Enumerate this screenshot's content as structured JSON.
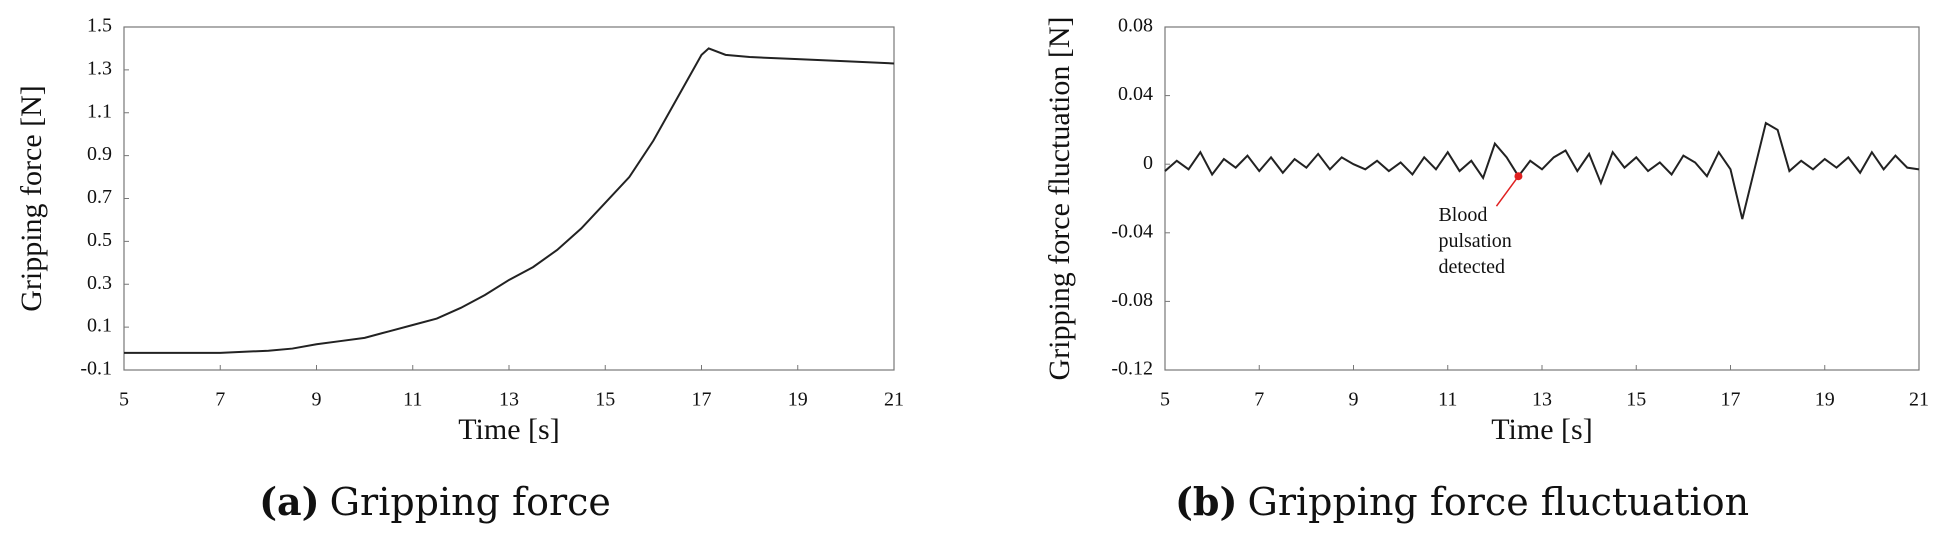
{
  "chart_data": [
    {
      "type": "line",
      "xlabel": "Time [s]",
      "ylabel": "Gripping force [N]",
      "caption_label": "(a)",
      "caption": "Gripping force",
      "xlim": [
        5,
        21
      ],
      "xticks": [
        5,
        7,
        9,
        11,
        13,
        15,
        17,
        19,
        21
      ],
      "ylim": [
        -0.1,
        1.5
      ],
      "yticks": [
        -0.1,
        0.1,
        0.3,
        0.5,
        0.7,
        0.9,
        1.1,
        1.3,
        1.5
      ],
      "series": [
        {
          "color": "#222222",
          "x": [
            5,
            6,
            7,
            7.5,
            8,
            8.5,
            9,
            9.5,
            10,
            10.5,
            11,
            11.5,
            12,
            12.5,
            13,
            13.5,
            14,
            14.5,
            15,
            15.5,
            16,
            16.5,
            17,
            17.15,
            17.5,
            18,
            19,
            20,
            21
          ],
          "values": [
            -0.02,
            -0.02,
            -0.02,
            -0.015,
            -0.01,
            0.0,
            0.02,
            0.035,
            0.05,
            0.08,
            0.11,
            0.14,
            0.19,
            0.25,
            0.32,
            0.38,
            0.46,
            0.56,
            0.68,
            0.8,
            0.97,
            1.17,
            1.37,
            1.4,
            1.37,
            1.36,
            1.35,
            1.34,
            1.33
          ]
        }
      ]
    },
    {
      "type": "line",
      "xlabel": "Time [s]",
      "ylabel": "Gripping force fluctuation [N]",
      "caption_label": "(b)",
      "caption": "Gripping force fluctuation",
      "xlim": [
        5,
        21
      ],
      "xticks": [
        5,
        7,
        9,
        11,
        13,
        15,
        17,
        19,
        21
      ],
      "ylim": [
        -0.12,
        0.08
      ],
      "yticks": [
        -0.12,
        -0.08,
        -0.04,
        0,
        0.04,
        0.08
      ],
      "annotation": {
        "lines": [
          "Blood",
          "pulsation",
          "detected"
        ],
        "x": 12.5,
        "y": -0.007,
        "color": "#e02020"
      },
      "series": [
        {
          "color": "#222222",
          "x": [
            5,
            5.25,
            5.5,
            5.75,
            6,
            6.25,
            6.5,
            6.75,
            7,
            7.25,
            7.5,
            7.75,
            8,
            8.25,
            8.5,
            8.75,
            9,
            9.25,
            9.5,
            9.75,
            10,
            10.25,
            10.5,
            10.75,
            11,
            11.25,
            11.5,
            11.75,
            12,
            12.25,
            12.5,
            12.75,
            13,
            13.25,
            13.5,
            13.75,
            14,
            14.25,
            14.5,
            14.75,
            15,
            15.25,
            15.5,
            15.75,
            16,
            16.25,
            16.5,
            16.75,
            17,
            17.25,
            17.5,
            17.75,
            18,
            18.25,
            18.5,
            18.75,
            19,
            19.25,
            19.5,
            19.75,
            20,
            20.25,
            20.5,
            20.75,
            21
          ],
          "values": [
            -0.004,
            0.002,
            -0.003,
            0.007,
            -0.006,
            0.003,
            -0.002,
            0.005,
            -0.004,
            0.004,
            -0.005,
            0.003,
            -0.002,
            0.006,
            -0.003,
            0.004,
            0.0,
            -0.003,
            0.002,
            -0.004,
            0.001,
            -0.006,
            0.004,
            -0.003,
            0.007,
            -0.004,
            0.002,
            -0.008,
            0.012,
            0.004,
            -0.007,
            0.002,
            -0.003,
            0.004,
            0.008,
            -0.004,
            0.006,
            -0.011,
            0.007,
            -0.002,
            0.004,
            -0.004,
            0.001,
            -0.006,
            0.005,
            0.001,
            -0.007,
            0.007,
            -0.003,
            -0.032,
            -0.004,
            0.024,
            0.02,
            -0.004,
            0.002,
            -0.003,
            0.003,
            -0.002,
            0.004,
            -0.005,
            0.007,
            -0.003,
            0.005,
            -0.002,
            -0.003
          ]
        }
      ]
    }
  ]
}
